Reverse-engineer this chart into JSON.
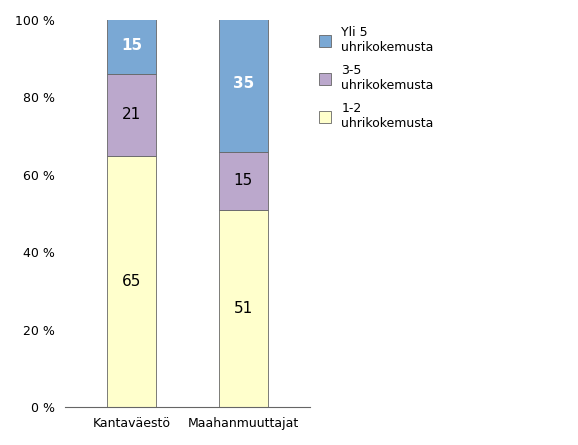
{
  "categories": [
    "Kantaväestö",
    "Maahanmuuttajat"
  ],
  "segments": [
    {
      "label": "1-2\nuhrikokemusta",
      "values": [
        65,
        51
      ],
      "color": "#FFFFCC"
    },
    {
      "label": "3-5\nuhrikokemusta",
      "values": [
        21,
        15
      ],
      "color": "#BBA8CC"
    },
    {
      "label": "Yli 5\nuhrikokemusta",
      "values": [
        15,
        35
      ],
      "color": "#7AA8D4"
    }
  ],
  "ylim": [
    0,
    100
  ],
  "yticks": [
    0,
    20,
    40,
    60,
    80,
    100
  ],
  "yticklabels": [
    "0 %",
    "20 %",
    "40 %",
    "60 %",
    "80 %",
    "100 %"
  ],
  "bar_width": 0.22,
  "x_positions": [
    0.25,
    0.75
  ],
  "label_fontsize": 11,
  "tick_fontsize": 9,
  "legend_fontsize": 9,
  "text_color_dark": "#000000",
  "text_color_white": "#FFFFFF",
  "background_color": "#FFFFFF",
  "figsize": [
    5.78,
    4.45
  ],
  "dpi": 100
}
